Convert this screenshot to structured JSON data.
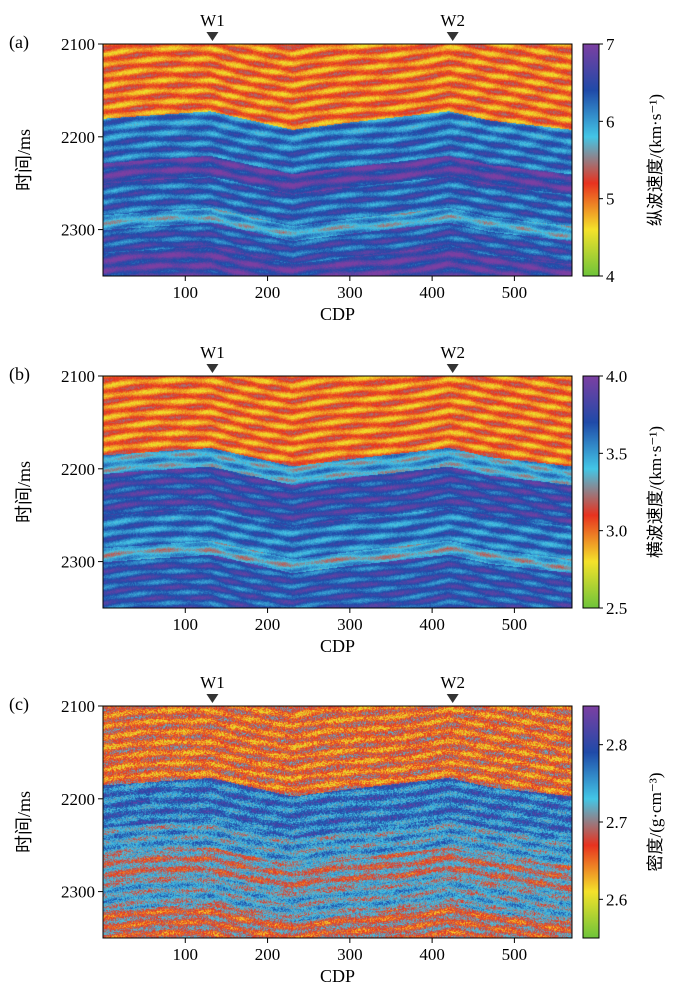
{
  "chart_data": [
    {
      "type": "heatmap",
      "panel_label": "(a)",
      "title": "",
      "xlabel": "CDP",
      "ylabel": "时间/ms",
      "x_ticks": [
        100,
        200,
        300,
        400,
        500
      ],
      "x_range": [
        0,
        570
      ],
      "y_ticks": [
        2100,
        2200,
        2300
      ],
      "y_range": [
        2100,
        2350
      ],
      "wells": [
        {
          "name": "W1",
          "cdp": 133
        },
        {
          "name": "W2",
          "cdp": 425
        }
      ],
      "colorbar": {
        "label": "纵波速度/(km·s⁻¹)",
        "min": 4,
        "max": 7,
        "ticks": [
          4,
          5,
          6,
          7
        ],
        "colormap": [
          "#6ec43a",
          "#f4e22a",
          "#e8321f",
          "#43c6e6",
          "#1f4aa8",
          "#7c3fa2"
        ]
      },
      "layers": [
        {
          "top": 2100,
          "value": 5.0
        },
        {
          "top": 2180,
          "value": 6.15
        },
        {
          "top": 2200,
          "value": 6.25
        },
        {
          "top": 2228,
          "value": 6.7
        },
        {
          "top": 2250,
          "value": 6.3
        },
        {
          "top": 2284,
          "value": 5.9
        },
        {
          "top": 2300,
          "value": 6.4
        },
        {
          "top": 2325,
          "value": 6.7
        }
      ],
      "horizon_shape": [
        [
          0,
          0
        ],
        [
          130,
          -8
        ],
        [
          230,
          12
        ],
        [
          300,
          4
        ],
        [
          420,
          -8
        ],
        [
          470,
          2
        ],
        [
          570,
          12
        ]
      ]
    },
    {
      "type": "heatmap",
      "panel_label": "(b)",
      "title": "",
      "xlabel": "CDP",
      "ylabel": "时间/ms",
      "x_ticks": [
        100,
        200,
        300,
        400,
        500
      ],
      "x_range": [
        0,
        570
      ],
      "y_ticks": [
        2100,
        2200,
        2300
      ],
      "y_range": [
        2100,
        2350
      ],
      "wells": [
        {
          "name": "W1",
          "cdp": 133
        },
        {
          "name": "W2",
          "cdp": 425
        }
      ],
      "colorbar": {
        "label": "横波速度/(km·s⁻¹)",
        "min": 2.5,
        "max": 4.0,
        "ticks": [
          2.5,
          3.0,
          3.5,
          4.0
        ],
        "colormap": [
          "#6ec43a",
          "#f4e22a",
          "#e8321f",
          "#43c6e6",
          "#1f4aa8",
          "#7c3fa2"
        ]
      },
      "layers": [
        {
          "top": 2100,
          "value": 3.0
        },
        {
          "top": 2185,
          "value": 3.45
        },
        {
          "top": 2205,
          "value": 3.75
        },
        {
          "top": 2250,
          "value": 3.6
        },
        {
          "top": 2285,
          "value": 3.4
        },
        {
          "top": 2300,
          "value": 3.7
        }
      ],
      "horizon_shape": [
        [
          0,
          0
        ],
        [
          130,
          -8
        ],
        [
          230,
          12
        ],
        [
          300,
          4
        ],
        [
          420,
          -8
        ],
        [
          470,
          2
        ],
        [
          570,
          12
        ]
      ]
    },
    {
      "type": "heatmap",
      "panel_label": "(c)",
      "title": "",
      "xlabel": "CDP",
      "ylabel": "时间/ms",
      "x_ticks": [
        100,
        200,
        300,
        400,
        500
      ],
      "x_range": [
        0,
        570
      ],
      "y_ticks": [
        2100,
        2200,
        2300
      ],
      "y_range": [
        2100,
        2350
      ],
      "wells": [
        {
          "name": "W1",
          "cdp": 133
        },
        {
          "name": "W2",
          "cdp": 425
        }
      ],
      "colorbar": {
        "label": "密度/(g·cm⁻³)",
        "min": 2.55,
        "max": 2.85,
        "ticks": [
          2.6,
          2.7,
          2.8
        ],
        "colormap": [
          "#6ec43a",
          "#f4e22a",
          "#e8321f",
          "#43c6e6",
          "#1f4aa8",
          "#7c3fa2"
        ]
      },
      "layers": [
        {
          "top": 2100,
          "value": 2.66
        },
        {
          "top": 2185,
          "value": 2.77
        },
        {
          "top": 2230,
          "value": 2.74
        },
        {
          "top": 2260,
          "value": 2.7
        },
        {
          "top": 2290,
          "value": 2.73
        },
        {
          "top": 2320,
          "value": 2.68
        }
      ],
      "horizon_shape": [
        [
          0,
          0
        ],
        [
          130,
          -8
        ],
        [
          230,
          12
        ],
        [
          300,
          4
        ],
        [
          420,
          -8
        ],
        [
          470,
          2
        ],
        [
          570,
          12
        ]
      ]
    }
  ]
}
